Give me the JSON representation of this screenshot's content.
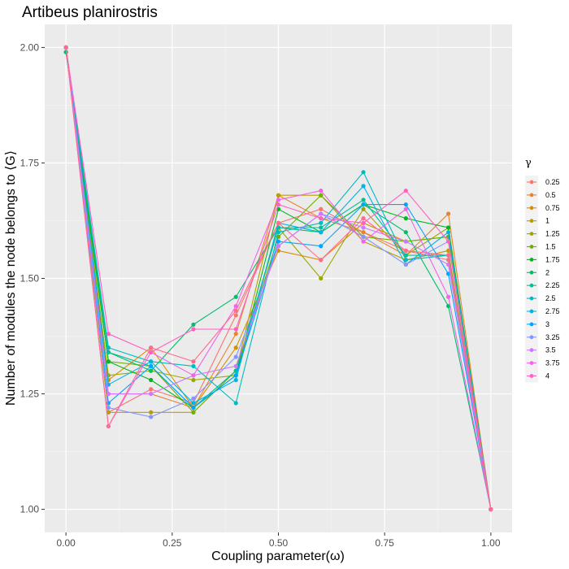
{
  "chart_data": {
    "type": "line",
    "title": "Artibeus planirostris",
    "xlabel": "Coupling parameter(ω)",
    "ylabel": "Number of modules the node belongs to ⟨G⟩",
    "xlim": [
      -0.05,
      1.05
    ],
    "ylim": [
      0.95,
      2.05
    ],
    "x_ticks": [
      0.0,
      0.25,
      0.5,
      0.75,
      1.0
    ],
    "x_tick_labels": [
      "0.00",
      "0.25",
      "0.50",
      "0.75",
      "1.00"
    ],
    "y_ticks": [
      1.0,
      1.25,
      1.5,
      1.75,
      2.0
    ],
    "y_tick_labels": [
      "1.00",
      "1.25",
      "1.50",
      "1.75",
      "2.00"
    ],
    "grid": true,
    "legend_title": "γ",
    "legend_position": "right",
    "x": [
      0.0,
      0.1,
      0.2,
      0.3,
      0.4,
      0.5,
      0.6,
      0.7,
      0.8,
      0.9,
      1.0
    ],
    "series": [
      {
        "name": "0.25",
        "color": "#F8766D",
        "values": [
          2.0,
          1.21,
          1.26,
          1.23,
          1.42,
          1.62,
          1.65,
          1.6,
          1.56,
          1.54,
          1.0
        ]
      },
      {
        "name": "0.5",
        "color": "#E9842C",
        "values": [
          2.0,
          1.25,
          1.25,
          1.22,
          1.38,
          1.68,
          1.63,
          1.6,
          1.55,
          1.64,
          1.0
        ]
      },
      {
        "name": "0.75",
        "color": "#D69100",
        "values": [
          2.0,
          1.28,
          1.35,
          1.22,
          1.35,
          1.56,
          1.54,
          1.62,
          1.58,
          1.59,
          1.0
        ]
      },
      {
        "name": "1",
        "color": "#BC9D00",
        "values": [
          2.0,
          1.21,
          1.21,
          1.21,
          1.3,
          1.68,
          1.68,
          1.58,
          1.54,
          1.56,
          1.0
        ]
      },
      {
        "name": "1.25",
        "color": "#9CA700",
        "values": [
          2.0,
          1.29,
          1.3,
          1.28,
          1.29,
          1.61,
          1.5,
          1.65,
          1.55,
          1.61,
          1.0
        ]
      },
      {
        "name": "1.5",
        "color": "#6FB000",
        "values": [
          2.0,
          1.32,
          1.31,
          1.21,
          1.3,
          1.59,
          1.68,
          1.59,
          1.58,
          1.59,
          1.0
        ]
      },
      {
        "name": "1.75",
        "color": "#00B81F",
        "values": [
          1.99,
          1.32,
          1.28,
          1.22,
          1.29,
          1.65,
          1.6,
          1.66,
          1.63,
          1.61,
          1.0
        ]
      },
      {
        "name": "2",
        "color": "#00BE6C",
        "values": [
          1.99,
          1.34,
          1.3,
          1.4,
          1.46,
          1.61,
          1.6,
          1.66,
          1.6,
          1.44,
          1.0
        ]
      },
      {
        "name": "2.25",
        "color": "#00BF99",
        "values": [
          2.0,
          1.34,
          1.31,
          1.22,
          1.3,
          1.61,
          1.61,
          1.67,
          1.55,
          1.55,
          1.0
        ]
      },
      {
        "name": "2.5",
        "color": "#00BCC0",
        "values": [
          2.0,
          1.35,
          1.32,
          1.31,
          1.23,
          1.6,
          1.62,
          1.73,
          1.54,
          1.55,
          1.0
        ]
      },
      {
        "name": "2.75",
        "color": "#00B4E4",
        "values": [
          2.0,
          1.27,
          1.32,
          1.23,
          1.28,
          1.62,
          1.6,
          1.7,
          1.53,
          1.6,
          1.0
        ]
      },
      {
        "name": "3",
        "color": "#00A5FF",
        "values": [
          2.0,
          1.23,
          1.31,
          1.22,
          1.29,
          1.58,
          1.57,
          1.66,
          1.66,
          1.51,
          1.0
        ]
      },
      {
        "name": "3.25",
        "color": "#8495FF",
        "values": [
          2.0,
          1.22,
          1.2,
          1.24,
          1.33,
          1.57,
          1.64,
          1.59,
          1.53,
          1.58,
          1.0
        ]
      },
      {
        "name": "3.5",
        "color": "#CF78FF",
        "values": [
          2.0,
          1.25,
          1.25,
          1.29,
          1.31,
          1.57,
          1.64,
          1.61,
          1.58,
          1.53,
          1.0
        ]
      },
      {
        "name": "3.75",
        "color": "#F264E8",
        "values": [
          2.0,
          1.18,
          1.34,
          1.29,
          1.44,
          1.67,
          1.69,
          1.58,
          1.65,
          1.46,
          1.0
        ]
      },
      {
        "name": "4",
        "color": "#FF61C3",
        "values": [
          2.0,
          1.38,
          1.34,
          1.39,
          1.39,
          1.66,
          1.63,
          1.62,
          1.69,
          1.58,
          1.0
        ]
      },
      {
        "name": "",
        "color": "#FF6C90",
        "values": [
          2.0,
          1.18,
          1.35,
          1.32,
          1.43,
          1.62,
          1.54,
          1.63,
          1.56,
          1.55,
          1.0
        ]
      }
    ]
  }
}
